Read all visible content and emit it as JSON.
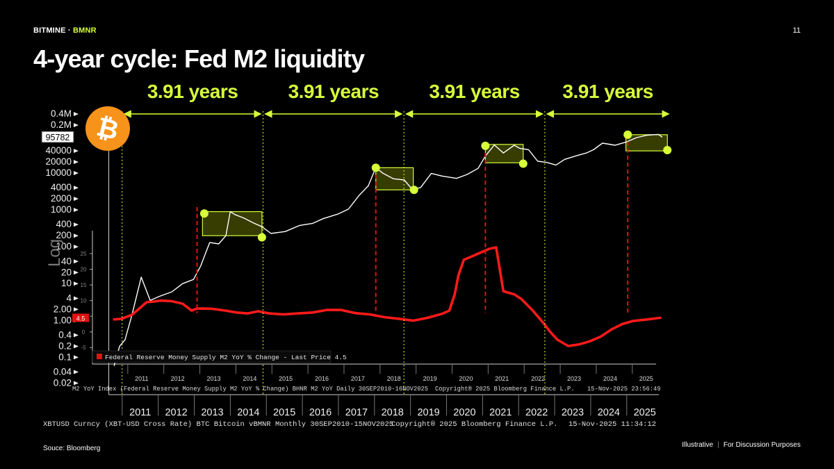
{
  "header": {
    "brand_name": "BITMINE",
    "brand_separator": "·",
    "brand_ticker": "BMNR",
    "page_number": "11"
  },
  "slide": {
    "title": "4-year cycle: Fed M2 liquidity"
  },
  "footer": {
    "source": "Souce: Bloomberg",
    "disclaimer_a": "Illustrative",
    "disclaimer_sep": "|",
    "disclaimer_b": "For Discussion Purposes"
  },
  "colors": {
    "accent": "#d7ff3a",
    "m2_line": "#ff1a1a",
    "btc_line": "#ffffff",
    "bitcoin_orange": "#f7931a",
    "box_fill": "#4a5200"
  },
  "chart_data": {
    "type": "line",
    "title": "4-year cycle: Fed M2 liquidity",
    "cycle_labels": [
      "3.91 years",
      "3.91 years",
      "3.91 years",
      "3.91 years"
    ],
    "cycle_dividers": [
      2010.92,
      2014.83,
      2018.74,
      2022.65
    ],
    "x_range": [
      2010.0,
      2026.2
    ],
    "btc_axis": {
      "scale": "log",
      "range": [
        0.015,
        420000
      ],
      "ticks": [
        "0.4M",
        "0.2M",
        "40000",
        "20000",
        "10000",
        "4000",
        "2000",
        "1000",
        "400",
        "200",
        "100",
        "40",
        "20",
        "10",
        "4",
        "2.00",
        "1.00",
        "0.4",
        "0.2",
        "0.1",
        "0.04",
        "0.02"
      ],
      "tick_values": [
        400000,
        200000,
        40000,
        20000,
        10000,
        4000,
        2000,
        1000,
        400,
        200,
        100,
        40,
        20,
        10,
        4,
        2,
        1,
        0.4,
        0.2,
        0.1,
        0.04,
        0.02
      ],
      "last_price": "95782",
      "label": "Log"
    },
    "m2_axis": {
      "range": [
        -6.5,
        27
      ],
      "ticks": [
        "25",
        "20",
        "15",
        "10",
        "5",
        "0",
        "-5"
      ],
      "tick_values": [
        25,
        20,
        15,
        10,
        5,
        0,
        -5
      ],
      "last_price": "4.5"
    },
    "series": [
      {
        "name": "Bitcoin (BTC)",
        "axis": "btc",
        "x": [
          2010.7,
          2010.85,
          2011.0,
          2011.2,
          2011.45,
          2011.7,
          2011.95,
          2012.3,
          2012.6,
          2012.9,
          2013.1,
          2013.35,
          2013.6,
          2013.8,
          2013.92,
          2014.05,
          2014.3,
          2014.55,
          2014.8,
          2015.05,
          2015.45,
          2015.85,
          2016.2,
          2016.5,
          2016.9,
          2017.2,
          2017.5,
          2017.75,
          2017.96,
          2018.15,
          2018.45,
          2018.75,
          2018.96,
          2019.2,
          2019.5,
          2019.8,
          2020.2,
          2020.5,
          2020.8,
          2021.0,
          2021.25,
          2021.5,
          2021.8,
          2021.95,
          2022.2,
          2022.45,
          2022.7,
          2022.96,
          2023.2,
          2023.5,
          2023.8,
          2024.0,
          2024.25,
          2024.6,
          2024.9,
          2025.2,
          2025.5,
          2025.8,
          2025.9
        ],
        "values": [
          0.06,
          0.2,
          0.3,
          1.5,
          15,
          3.5,
          4.5,
          6,
          10,
          13,
          30,
          130,
          120,
          200,
          900,
          750,
          600,
          450,
          350,
          230,
          260,
          380,
          430,
          580,
          770,
          1050,
          2500,
          4500,
          14000,
          10000,
          7000,
          6500,
          3700,
          4000,
          9800,
          8300,
          7200,
          9200,
          13500,
          29000,
          58000,
          35000,
          57000,
          47000,
          43000,
          21000,
          19500,
          16500,
          23500,
          29000,
          35000,
          43000,
          65000,
          57000,
          69000,
          92000,
          107000,
          112000,
          95782
        ]
      },
      {
        "name": "Federal Reserve Money Supply M2 YoY % Change - Last Price 4.5",
        "axis": "m2",
        "x": [
          2010.7,
          2010.9,
          2011.2,
          2011.4,
          2011.6,
          2011.8,
          2012.0,
          2012.3,
          2012.6,
          2012.85,
          2013.0,
          2013.4,
          2013.8,
          2014.1,
          2014.4,
          2014.7,
          2015.0,
          2015.4,
          2015.8,
          2016.2,
          2016.6,
          2017.0,
          2017.4,
          2017.8,
          2018.2,
          2018.6,
          2019.0,
          2019.4,
          2019.8,
          2020.0,
          2020.15,
          2020.25,
          2020.4,
          2020.7,
          2020.9,
          2021.1,
          2021.3,
          2021.5,
          2021.8,
          2022.0,
          2022.3,
          2022.6,
          2022.8,
          2023.0,
          2023.3,
          2023.6,
          2023.9,
          2024.2,
          2024.5,
          2024.8,
          2025.1,
          2025.5,
          2025.85
        ],
        "values": [
          4.0,
          4.2,
          5.5,
          7.5,
          9.5,
          9.7,
          10.0,
          9.8,
          9.0,
          6.8,
          7.5,
          7.4,
          6.8,
          6.2,
          5.9,
          6.6,
          5.9,
          5.6,
          5.9,
          6.2,
          7.0,
          7.0,
          6.0,
          5.6,
          4.7,
          4.2,
          3.6,
          4.5,
          5.8,
          6.8,
          12.0,
          18.0,
          23.0,
          24.5,
          25.5,
          26.5,
          27.0,
          13.0,
          12.0,
          10.5,
          7.0,
          3.0,
          0.0,
          -2.5,
          -4.5,
          -4.0,
          -3.0,
          -1.5,
          0.8,
          2.5,
          3.5,
          4.0,
          4.5
        ]
      }
    ],
    "highlight_boxes": [
      {
        "x0": 2013.15,
        "x1": 2014.8,
        "top": 900,
        "bottom": 200
      },
      {
        "x0": 2017.96,
        "x1": 2019.0,
        "top": 14000,
        "bottom": 3500
      },
      {
        "x0": 2021.0,
        "x1": 2022.05,
        "top": 60000,
        "bottom": 19000
      },
      {
        "x0": 2024.9,
        "x1": 2026.05,
        "top": 110000,
        "bottom": 40000
      }
    ],
    "cycle_points": [
      {
        "x": 2013.2,
        "y": 800
      },
      {
        "x": 2014.8,
        "y": 180
      },
      {
        "x": 2017.96,
        "y": 14000
      },
      {
        "x": 2019.02,
        "y": 3500
      },
      {
        "x": 2021.0,
        "y": 55000
      },
      {
        "x": 2022.05,
        "y": 18000
      },
      {
        "x": 2024.95,
        "y": 110000
      },
      {
        "x": 2026.05,
        "y": 42000
      }
    ],
    "dashed_markers": [
      {
        "x": 2013.0,
        "from_value": 1200
      },
      {
        "x": 2017.96,
        "from_value": 14000
      },
      {
        "x": 2021.0,
        "from_value": 55000
      },
      {
        "x": 2024.95,
        "from_value": 110000
      }
    ],
    "inner_xaxis_labels": [
      "2011",
      "2012",
      "2013",
      "2014",
      "2015",
      "2016",
      "2017",
      "2018",
      "2019",
      "2020",
      "2021",
      "2022",
      "2023",
      "2024",
      "2025"
    ],
    "outer_xaxis_labels": [
      "2011",
      "2012",
      "2013",
      "2014",
      "2015",
      "2016",
      "2017",
      "2018",
      "2019",
      "2020",
      "2021",
      "2022",
      "2023",
      "2024",
      "2025"
    ],
    "legend": {
      "label": "Federal Reserve Money Supply M2 YoY % Change - Last Price 4.5",
      "placement": "bottom-left"
    },
    "inner_caption": {
      "left": "M2 YoY Index (Federal Reserve Money Supply M2 YoY % Change) BHNR M2 YoY Daily 30SEP2010-16NOV2025",
      "mid": "Copyright® 2025 Bloomberg Finance L.P.",
      "right": "15-Nov-2025 23:56:49"
    },
    "outer_caption": {
      "left": "XBTUSD Curncy (XBT-USD Cross Rate) BTC Bitcoin vBMNR Monthly 30SEP2010-15NOV2025",
      "mid": "Copyright® 2025 Bloomberg Finance L.P.",
      "right": "15-Nov-2025 11:34:12"
    },
    "bitcoin_logo_glyph": "₿"
  }
}
